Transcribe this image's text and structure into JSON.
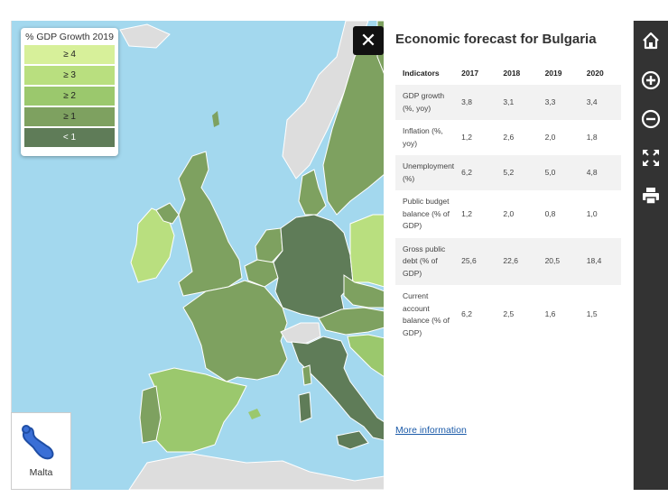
{
  "legend": {
    "title": "% GDP Growth 2019",
    "items": [
      {
        "label": "≥ 4",
        "color": "#d7f09a"
      },
      {
        "label": "≥ 3",
        "color": "#b9df7f"
      },
      {
        "label": "≥ 2",
        "color": "#9bc86d"
      },
      {
        "label": "≥ 1",
        "color": "#7ea160"
      },
      {
        "label": "< 1",
        "color": "#5f7c58"
      }
    ]
  },
  "map": {
    "sea_color": "#a3d8ee",
    "no_data_color": "#dddddd",
    "close_label": "✕",
    "malta": {
      "label": "Malta",
      "color": "#3a6fd6"
    }
  },
  "panel": {
    "title": "Economic forecast for Bulgaria",
    "table": {
      "headers": [
        "Indicators",
        "2017",
        "2018",
        "2019",
        "2020"
      ],
      "rows": [
        {
          "indicator": "GDP growth (%, yoy)",
          "values": [
            "3,8",
            "3,1",
            "3,3",
            "3,4"
          ]
        },
        {
          "indicator": "Inflation (%, yoy)",
          "values": [
            "1,2",
            "2,6",
            "2,0",
            "1,8"
          ]
        },
        {
          "indicator": "Unemployment (%)",
          "values": [
            "6,2",
            "5,2",
            "5,0",
            "4,8"
          ]
        },
        {
          "indicator": "Public budget balance (% of GDP)",
          "values": [
            "1,2",
            "2,0",
            "0,8",
            "1,0"
          ]
        },
        {
          "indicator": "Gross public debt (% of GDP)",
          "values": [
            "25,6",
            "22,6",
            "20,5",
            "18,4"
          ]
        },
        {
          "indicator": "Current account balance (% of GDP)",
          "values": [
            "6,2",
            "2,5",
            "1,6",
            "1,5"
          ]
        }
      ]
    },
    "more_link": "More information"
  },
  "toolbar": {
    "icons": [
      "home-icon",
      "zoom-in-icon",
      "zoom-out-icon",
      "fullscreen-icon",
      "print-icon"
    ]
  }
}
